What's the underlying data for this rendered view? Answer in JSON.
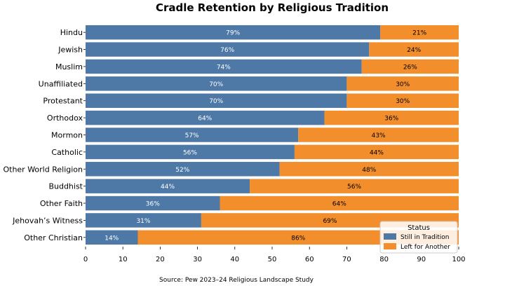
{
  "chart_data": {
    "type": "bar",
    "orientation": "horizontal",
    "stacked": true,
    "title": "Cradle Retention by Religious Tradition",
    "source": "Source: Pew 2023–24 Religious Landscape Study",
    "categories": [
      "Hindu",
      "Jewish",
      "Muslim",
      "Unaffiliated",
      "Protestant",
      "Orthodox",
      "Mormon",
      "Catholic",
      "Other World Religion",
      "Buddhist",
      "Other Faith",
      "Jehovah’s Witness",
      "Other Christian"
    ],
    "series": [
      {
        "name": "Still in Tradition",
        "color": "#4e79a7",
        "values": [
          79,
          76,
          74,
          70,
          70,
          64,
          57,
          56,
          52,
          44,
          36,
          31,
          14
        ],
        "labels": [
          "79%",
          "76%",
          "74%",
          "70%",
          "70%",
          "64%",
          "57%",
          "56%",
          "52%",
          "44%",
          "36%",
          "31%",
          "14%"
        ]
      },
      {
        "name": "Left for Another",
        "color": "#f28e2b",
        "values": [
          21,
          24,
          26,
          30,
          30,
          36,
          43,
          44,
          48,
          56,
          64,
          69,
          86
        ],
        "labels": [
          "21%",
          "24%",
          "26%",
          "30%",
          "30%",
          "36%",
          "43%",
          "44%",
          "48%",
          "56%",
          "64%",
          "69%",
          "86%"
        ]
      }
    ],
    "xlim": [
      0,
      100
    ],
    "xticks": [
      "0",
      "10",
      "20",
      "30",
      "40",
      "50",
      "60",
      "70",
      "80",
      "90",
      "100"
    ],
    "xlabel": "",
    "ylabel": "",
    "legend": {
      "title": "Status",
      "position": "bottom-right"
    },
    "grid": false
  }
}
